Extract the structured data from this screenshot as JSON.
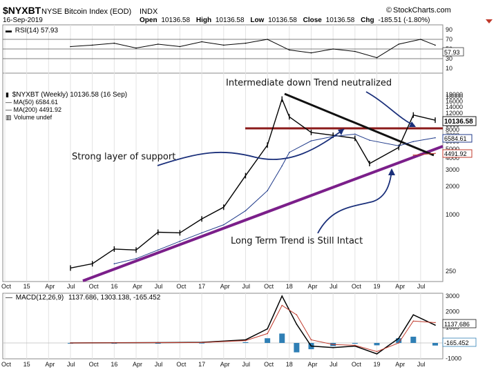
{
  "header": {
    "symbol": "$NYXBT",
    "name": "NYSE Bitcoin Index (EOD)",
    "exchange": "INDX",
    "date": "16-Sep-2019",
    "brand": "StockCharts.com",
    "brand_prefix": "©",
    "open_label": "Open",
    "open": "10136.58",
    "high_label": "High",
    "high": "10136.58",
    "low_label": "Low",
    "low": "10136.58",
    "close_label": "Close",
    "close": "10136.58",
    "chg_label": "Chg",
    "chg": "-185.51 (-1.80%)"
  },
  "rsi_panel": {
    "legend": "RSI(14) 57.93",
    "value_box": "57.93",
    "ticks": [
      "90",
      "70",
      "50",
      "30",
      "10"
    ]
  },
  "price_panel": {
    "legend": [
      "$NYXBT (Weekly) 10136.58 (16 Sep)",
      "MA(50) 6584.61",
      "MA(200) 4491.92",
      "Volume undef"
    ],
    "price_box": "10136.58",
    "ma50_box": "6584.61",
    "ma200_box": "4491.92",
    "ticks": [
      "19000",
      "18000",
      "16000",
      "14000",
      "12000",
      "10000",
      "9000",
      "8000",
      "7000",
      "6000",
      "5000",
      "4000",
      "3000",
      "2000",
      "1000",
      "250"
    ]
  },
  "macd_panel": {
    "legend_name": "MACD(12,26,9)",
    "legend_values": "1137.686, 1303.138, -165.452",
    "macd_box": "1137.686",
    "hist_box": "-165.452",
    "ticks": [
      "3000",
      "2000",
      "1000",
      "0",
      "-1000"
    ]
  },
  "x_axis": {
    "labels": [
      "Oct",
      "15",
      "Apr",
      "Jul",
      "Oct",
      "16",
      "Apr",
      "Jul",
      "Oct",
      "17",
      "Apr",
      "Jul",
      "Oct",
      "18",
      "Apr",
      "Jul",
      "Oct",
      "19",
      "Apr",
      "Jul"
    ]
  },
  "annotations": {
    "down_trend": "Intermediate down Trend neutralized",
    "support": "Strong layer of support",
    "long_term": "Long Term Trend is Still Intact"
  },
  "colors": {
    "price": "#000000",
    "ma50": "#1f3a8a",
    "ma200": "#c0392b",
    "rsi_fill": "#5a9a4a",
    "macd_hist": "#2f7fb5",
    "support_line": "#8b1a1a",
    "long_trend": "#7b1f8a",
    "annotation_arrow": "#1a2f7a"
  },
  "chart_data": [
    {
      "type": "line",
      "title": "RSI(14)",
      "ylim": [
        0,
        100
      ],
      "x": [
        "Jul 15",
        "Oct 15",
        "Jan 16",
        "Apr 16",
        "Jul 16",
        "Oct 16",
        "Jan 17",
        "Apr 17",
        "Jul 17",
        "Oct 17",
        "Jan 18",
        "Apr 18",
        "Jul 18",
        "Oct 18",
        "Jan 19",
        "Apr 19",
        "Jul 19",
        "Sep 19"
      ],
      "values": [
        55,
        58,
        62,
        52,
        60,
        55,
        65,
        58,
        62,
        70,
        48,
        42,
        50,
        45,
        32,
        60,
        70,
        57.93
      ],
      "reference_lines": [
        70,
        50,
        30
      ]
    },
    {
      "type": "line",
      "title": "$NYXBT (Weekly)",
      "scale": "log",
      "ylim": [
        200,
        20000
      ],
      "x": [
        "Jul 15",
        "Oct 15",
        "Jan 16",
        "Apr 16",
        "Jul 16",
        "Oct 16",
        "Jan 17",
        "Apr 17",
        "Jul 17",
        "Oct 17",
        "Dec 17",
        "Jan 18",
        "Apr 18",
        "Jul 18",
        "Oct 18",
        "Dec 18",
        "Apr 19",
        "Jun 19",
        "Sep 19"
      ],
      "series": [
        {
          "name": "$NYXBT (Weekly)",
          "values": [
            270,
            300,
            430,
            420,
            650,
            640,
            900,
            1200,
            2600,
            5500,
            17000,
            11000,
            7500,
            7000,
            6500,
            3500,
            5200,
            11500,
            10136.58
          ]
        },
        {
          "name": "MA(50)",
          "values": [
            null,
            null,
            300,
            340,
            420,
            520,
            640,
            780,
            1100,
            1800,
            3300,
            4600,
            6100,
            6800,
            7200,
            6200,
            5400,
            6000,
            6584.61
          ]
        },
        {
          "name": "MA(200)",
          "values": [
            null,
            null,
            null,
            null,
            null,
            null,
            null,
            null,
            null,
            null,
            null,
            null,
            null,
            null,
            null,
            null,
            null,
            4300,
            4491.92
          ]
        }
      ]
    },
    {
      "type": "line",
      "title": "MACD(12,26,9)",
      "ylim": [
        -1500,
        3300
      ],
      "x": [
        "Jul 15",
        "Jan 16",
        "Jul 16",
        "Jan 17",
        "Jul 17",
        "Oct 17",
        "Dec 17",
        "Feb 18",
        "Apr 18",
        "Jul 18",
        "Oct 18",
        "Jan 19",
        "Apr 19",
        "Jun 19",
        "Sep 19"
      ],
      "series": [
        {
          "name": "MACD",
          "values": [
            0,
            10,
            20,
            40,
            200,
            900,
            3000,
            1200,
            -200,
            -300,
            -200,
            -700,
            300,
            1800,
            1137.686
          ]
        },
        {
          "name": "Signal",
          "values": [
            0,
            10,
            20,
            30,
            150,
            600,
            2400,
            1800,
            200,
            -100,
            -150,
            -550,
            0,
            1400,
            1303.138
          ]
        },
        {
          "name": "Histogram",
          "values": [
            0,
            0,
            0,
            10,
            50,
            300,
            600,
            -600,
            -400,
            -200,
            -50,
            -150,
            300,
            400,
            -165.452
          ]
        }
      ]
    }
  ]
}
